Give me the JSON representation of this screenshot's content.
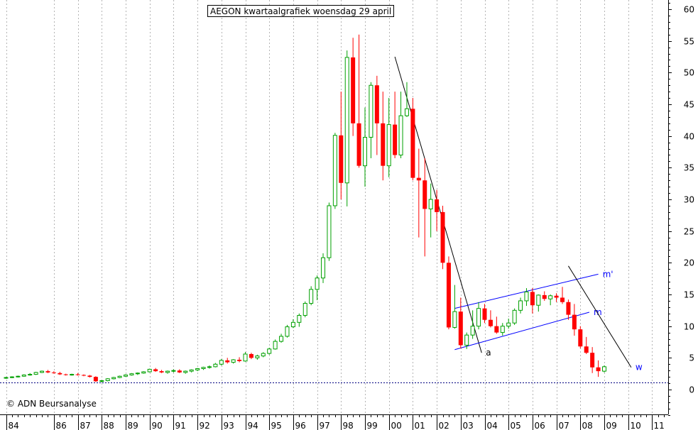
{
  "title": "AEGON kwartaalgrafiek woensdag 29 april",
  "copyright": "© ADN Beursanalyse",
  "colors": {
    "up": "#00a000",
    "down": "#ff0000",
    "grid": "#b4b4b4",
    "trendline": "#000000",
    "channel": "#0000ff",
    "baseline": "#000080"
  },
  "chart_data": {
    "type": "candlestick",
    "title": "AEGON kwartaalgrafiek woensdag 29 april",
    "period": "quarter",
    "y_axis_position": "right",
    "ylim": [
      -4,
      61
    ],
    "y_ticks": [
      0,
      5,
      10,
      15,
      20,
      25,
      30,
      35,
      40,
      45,
      50,
      55,
      60
    ],
    "x_ticks": [
      {
        "label": "84",
        "q": 0
      },
      {
        "label": "86",
        "q": 8
      },
      {
        "label": "87",
        "q": 12
      },
      {
        "label": "88",
        "q": 16
      },
      {
        "label": "89",
        "q": 20
      },
      {
        "label": "90",
        "q": 24
      },
      {
        "label": "91",
        "q": 28
      },
      {
        "label": "92",
        "q": 32
      },
      {
        "label": "93",
        "q": 36
      },
      {
        "label": "94",
        "q": 40
      },
      {
        "label": "95",
        "q": 44
      },
      {
        "label": "96",
        "q": 48
      },
      {
        "label": "97",
        "q": 52
      },
      {
        "label": "98",
        "q": 56
      },
      {
        "label": "99",
        "q": 60
      },
      {
        "label": "00",
        "q": 64
      },
      {
        "label": "01",
        "q": 68
      },
      {
        "label": "02",
        "q": 72
      },
      {
        "label": "03",
        "q": 76
      },
      {
        "label": "04",
        "q": 80
      },
      {
        "label": "05",
        "q": 84
      },
      {
        "label": "06",
        "q": 88
      },
      {
        "label": "07",
        "q": 92
      },
      {
        "label": "08",
        "q": 96
      },
      {
        "label": "09",
        "q": 100
      },
      {
        "label": "10",
        "q": 104
      },
      {
        "label": "11",
        "q": 108
      }
    ],
    "candles": [
      [
        1.8,
        2.0,
        1.7,
        1.9
      ],
      [
        1.9,
        2.1,
        1.8,
        2.0
      ],
      [
        2.0,
        2.2,
        1.9,
        2.1
      ],
      [
        2.1,
        2.4,
        2.0,
        2.3
      ],
      [
        2.3,
        2.6,
        2.2,
        2.4
      ],
      [
        2.4,
        2.8,
        2.3,
        2.7
      ],
      [
        2.7,
        3.0,
        2.6,
        2.9
      ],
      [
        2.9,
        3.1,
        2.6,
        2.7
      ],
      [
        2.7,
        2.9,
        2.5,
        2.6
      ],
      [
        2.6,
        2.8,
        2.3,
        2.4
      ],
      [
        2.4,
        2.5,
        2.2,
        2.3
      ],
      [
        2.3,
        2.5,
        2.2,
        2.4
      ],
      [
        2.4,
        2.6,
        2.2,
        2.3
      ],
      [
        2.3,
        2.4,
        2.1,
        2.2
      ],
      [
        2.2,
        2.3,
        1.9,
        2.0
      ],
      [
        2.0,
        2.1,
        1.2,
        1.3
      ],
      [
        1.3,
        1.5,
        1.1,
        1.4
      ],
      [
        1.4,
        1.8,
        1.3,
        1.7
      ],
      [
        1.7,
        2.0,
        1.6,
        1.9
      ],
      [
        1.9,
        2.2,
        1.8,
        2.1
      ],
      [
        2.1,
        2.4,
        2.0,
        2.3
      ],
      [
        2.3,
        2.6,
        2.2,
        2.5
      ],
      [
        2.5,
        2.7,
        2.3,
        2.6
      ],
      [
        2.6,
        2.9,
        2.5,
        2.8
      ],
      [
        2.8,
        3.3,
        2.7,
        3.2
      ],
      [
        3.2,
        3.4,
        2.8,
        2.9
      ],
      [
        2.9,
        3.1,
        2.6,
        2.7
      ],
      [
        2.7,
        3.0,
        2.5,
        2.9
      ],
      [
        2.9,
        3.2,
        2.7,
        3.0
      ],
      [
        3.0,
        3.2,
        2.6,
        2.7
      ],
      [
        2.7,
        3.0,
        2.5,
        2.9
      ],
      [
        2.9,
        3.2,
        2.7,
        3.1
      ],
      [
        3.1,
        3.4,
        2.9,
        3.3
      ],
      [
        3.3,
        3.6,
        3.1,
        3.5
      ],
      [
        3.5,
        3.8,
        3.3,
        3.6
      ],
      [
        3.6,
        4.2,
        3.5,
        4.0
      ],
      [
        4.0,
        4.8,
        3.8,
        4.6
      ],
      [
        4.6,
        5.0,
        4.1,
        4.3
      ],
      [
        4.3,
        4.8,
        4.1,
        4.7
      ],
      [
        4.7,
        5.1,
        4.3,
        4.5
      ],
      [
        4.5,
        5.9,
        4.4,
        5.6
      ],
      [
        5.6,
        5.8,
        4.8,
        5.0
      ],
      [
        5.0,
        5.5,
        4.7,
        5.3
      ],
      [
        5.3,
        5.9,
        5.1,
        5.7
      ],
      [
        5.7,
        6.6,
        5.5,
        6.4
      ],
      [
        6.4,
        7.9,
        6.3,
        7.6
      ],
      [
        7.6,
        8.8,
        7.4,
        8.4
      ],
      [
        8.4,
        10.2,
        8.2,
        9.9
      ],
      [
        9.9,
        11.1,
        9.7,
        10.6
      ],
      [
        10.6,
        12.0,
        9.9,
        11.7
      ],
      [
        11.7,
        13.9,
        11.4,
        13.6
      ],
      [
        13.6,
        16.3,
        13.3,
        15.8
      ],
      [
        15.8,
        18.0,
        14.1,
        17.6
      ],
      [
        17.6,
        21.5,
        16.8,
        20.8
      ],
      [
        20.8,
        29.5,
        20.3,
        29.0
      ],
      [
        29.0,
        40.5,
        28.5,
        40.1
      ],
      [
        40.1,
        47.0,
        30.0,
        32.6
      ],
      [
        32.6,
        53.5,
        28.9,
        52.4
      ],
      [
        52.4,
        55.5,
        40.0,
        42.0
      ],
      [
        42.0,
        56.0,
        35.0,
        35.3
      ],
      [
        35.3,
        44.5,
        32.0,
        39.8
      ],
      [
        39.8,
        48.5,
        36.5,
        48.0
      ],
      [
        48.0,
        49.5,
        37.0,
        42.0
      ],
      [
        42.0,
        47.0,
        33.0,
        35.3
      ],
      [
        35.3,
        46.0,
        33.5,
        41.8
      ],
      [
        41.8,
        47.0,
        36.5,
        37.0
      ],
      [
        37.0,
        47.0,
        36.5,
        43.2
      ],
      [
        43.2,
        48.5,
        43.0,
        44.3
      ],
      [
        44.3,
        46.0,
        33.0,
        33.4
      ],
      [
        33.4,
        38.0,
        24.0,
        33.0
      ],
      [
        33.0,
        36.5,
        21.0,
        28.5
      ],
      [
        28.5,
        32.5,
        24.0,
        30.0
      ],
      [
        30.0,
        31.5,
        25.0,
        28.0
      ],
      [
        28.0,
        29.0,
        19.0,
        20.0
      ],
      [
        20.0,
        21.0,
        9.5,
        9.8
      ],
      [
        9.8,
        16.5,
        9.6,
        12.3
      ],
      [
        12.3,
        14.5,
        6.5,
        7.0
      ],
      [
        7.0,
        9.0,
        6.4,
        8.6
      ],
      [
        8.6,
        12.5,
        8.0,
        10.0
      ],
      [
        10.0,
        13.8,
        9.5,
        12.8
      ],
      [
        12.8,
        13.5,
        10.5,
        11.0
      ],
      [
        11.0,
        12.5,
        9.8,
        10.0
      ],
      [
        10.0,
        11.5,
        8.8,
        9.0
      ],
      [
        9.0,
        10.5,
        8.5,
        10.0
      ],
      [
        10.0,
        11.2,
        9.6,
        10.5
      ],
      [
        10.5,
        12.8,
        10.2,
        12.5
      ],
      [
        12.5,
        14.5,
        12.0,
        14.0
      ],
      [
        14.0,
        16.0,
        13.2,
        15.4
      ],
      [
        15.4,
        16.0,
        12.0,
        13.3
      ],
      [
        13.3,
        15.0,
        12.3,
        14.9
      ],
      [
        14.9,
        15.5,
        14.0,
        14.3
      ],
      [
        14.3,
        15.0,
        13.3,
        14.8
      ],
      [
        14.8,
        15.2,
        13.8,
        14.5
      ],
      [
        14.5,
        16.2,
        13.5,
        13.8
      ],
      [
        13.8,
        14.2,
        11.0,
        11.8
      ],
      [
        11.8,
        13.5,
        8.5,
        9.5
      ],
      [
        9.5,
        10.0,
        6.5,
        6.8
      ],
      [
        6.8,
        8.3,
        5.6,
        5.8
      ],
      [
        5.8,
        6.7,
        2.6,
        3.5
      ],
      [
        3.5,
        4.6,
        2.0,
        2.9
      ],
      [
        2.9,
        3.8,
        2.7,
        3.6
      ]
    ],
    "annotations": [
      {
        "type": "trendline",
        "from": [
          65,
          52.5
        ],
        "to": [
          79.5,
          5.8
        ],
        "label": "a"
      },
      {
        "type": "channel_line",
        "from": [
          75,
          6.3
        ],
        "to": [
          97.5,
          12.2
        ],
        "label": "m"
      },
      {
        "type": "channel_line",
        "from": [
          75,
          12.8
        ],
        "to": [
          99,
          18.2
        ],
        "label": "m'"
      },
      {
        "type": "trendline",
        "from": [
          94,
          19.5
        ],
        "to": [
          104.5,
          3.5
        ],
        "label": "w"
      },
      {
        "type": "hline",
        "y": 1.1,
        "style": "dashed"
      }
    ]
  }
}
